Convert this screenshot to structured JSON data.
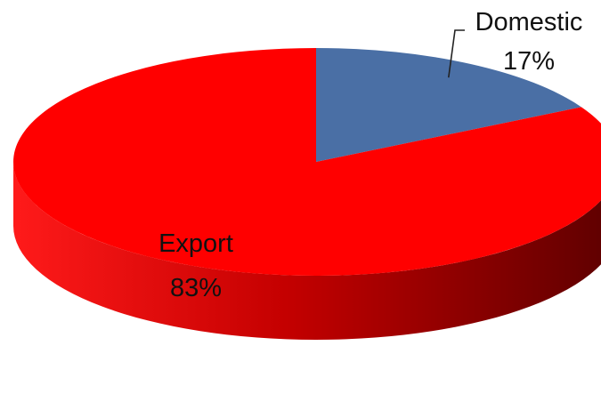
{
  "chart_data": {
    "type": "pie",
    "title": "",
    "slices": [
      {
        "label": "Domestic",
        "percent_label": "17%",
        "value": 17,
        "color": "#4a6fa5"
      },
      {
        "label": "Export",
        "percent_label": "83%",
        "value": 83,
        "color": "#ff0000"
      }
    ],
    "legend": "none",
    "style": "3d"
  }
}
